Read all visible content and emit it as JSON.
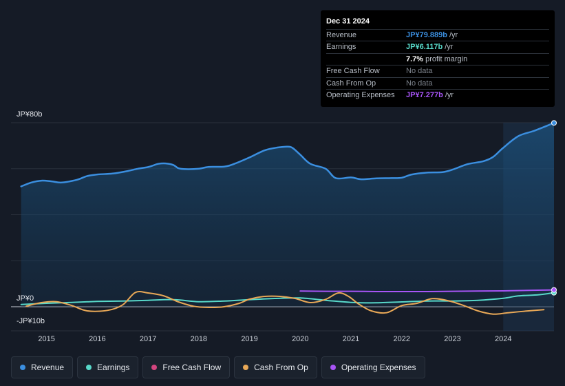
{
  "chart_data": {
    "type": "line",
    "title": "",
    "y_axis": {
      "top_label": "JP¥80b",
      "zero_label": "JP¥0",
      "bottom_label": "-JP¥10b",
      "ylim": [
        -10,
        80
      ]
    },
    "x_ticks": [
      "2015",
      "2016",
      "2017",
      "2018",
      "2019",
      "2020",
      "2021",
      "2022",
      "2023",
      "2024"
    ],
    "x_range": [
      2014.3,
      2025.0
    ],
    "forecast_start": 2024.0,
    "series": [
      {
        "name": "Revenue",
        "color": "#3b8fe0",
        "fill": true,
        "points": [
          [
            2014.5,
            52.3
          ],
          [
            2014.7,
            54.0
          ],
          [
            2014.9,
            54.8
          ],
          [
            2015.1,
            54.5
          ],
          [
            2015.3,
            54.0
          ],
          [
            2015.6,
            55.2
          ],
          [
            2015.8,
            56.8
          ],
          [
            2016.0,
            57.5
          ],
          [
            2016.3,
            57.9
          ],
          [
            2016.6,
            59.0
          ],
          [
            2016.8,
            60.0
          ],
          [
            2017.0,
            60.7
          ],
          [
            2017.1,
            61.4
          ],
          [
            2017.2,
            62.1
          ],
          [
            2017.35,
            62.3
          ],
          [
            2017.5,
            61.6
          ],
          [
            2017.6,
            60.2
          ],
          [
            2017.75,
            59.8
          ],
          [
            2018.0,
            60.0
          ],
          [
            2018.2,
            60.8
          ],
          [
            2018.5,
            60.9
          ],
          [
            2018.7,
            62.1
          ],
          [
            2019.0,
            64.9
          ],
          [
            2019.3,
            68.0
          ],
          [
            2019.55,
            69.2
          ],
          [
            2019.75,
            69.6
          ],
          [
            2019.85,
            69.0
          ],
          [
            2020.0,
            66.1
          ],
          [
            2020.2,
            62.1
          ],
          [
            2020.5,
            60.0
          ],
          [
            2020.7,
            55.9
          ],
          [
            2021.0,
            56.2
          ],
          [
            2021.2,
            55.4
          ],
          [
            2021.5,
            55.8
          ],
          [
            2021.8,
            55.9
          ],
          [
            2022.0,
            56.1
          ],
          [
            2022.2,
            57.5
          ],
          [
            2022.5,
            58.3
          ],
          [
            2022.8,
            58.5
          ],
          [
            2023.0,
            59.6
          ],
          [
            2023.3,
            62.0
          ],
          [
            2023.6,
            63.2
          ],
          [
            2023.8,
            65.1
          ],
          [
            2024.0,
            69.1
          ],
          [
            2024.3,
            74.2
          ],
          [
            2024.6,
            76.4
          ],
          [
            2024.9,
            79.0
          ],
          [
            2025.0,
            79.9
          ]
        ]
      },
      {
        "name": "Earnings",
        "color": "#58d8c9",
        "fill": false,
        "points": [
          [
            2014.5,
            1.0
          ],
          [
            2015.0,
            1.5
          ],
          [
            2015.5,
            1.9
          ],
          [
            2016.0,
            2.3
          ],
          [
            2016.5,
            2.5
          ],
          [
            2017.0,
            2.8
          ],
          [
            2017.5,
            3.1
          ],
          [
            2018.0,
            2.2
          ],
          [
            2018.5,
            2.5
          ],
          [
            2019.0,
            3.1
          ],
          [
            2019.5,
            3.6
          ],
          [
            2020.0,
            3.8
          ],
          [
            2020.5,
            2.8
          ],
          [
            2021.0,
            1.9
          ],
          [
            2021.5,
            1.7
          ],
          [
            2022.0,
            2.1
          ],
          [
            2022.5,
            2.5
          ],
          [
            2023.0,
            2.5
          ],
          [
            2023.5,
            2.8
          ],
          [
            2024.0,
            3.7
          ],
          [
            2024.3,
            4.7
          ],
          [
            2024.7,
            5.2
          ],
          [
            2025.0,
            6.1
          ]
        ]
      },
      {
        "name": "Cash From Op",
        "color": "#e8a857",
        "fill": false,
        "points": [
          [
            2014.6,
            0.2
          ],
          [
            2014.9,
            1.8
          ],
          [
            2015.2,
            2.2
          ],
          [
            2015.5,
            0.5
          ],
          [
            2015.8,
            -1.8
          ],
          [
            2016.2,
            -1.6
          ],
          [
            2016.5,
            0.8
          ],
          [
            2016.75,
            6.2
          ],
          [
            2017.0,
            6.0
          ],
          [
            2017.3,
            4.8
          ],
          [
            2017.6,
            2.1
          ],
          [
            2017.9,
            0.2
          ],
          [
            2018.2,
            -0.3
          ],
          [
            2018.5,
            0.0
          ],
          [
            2018.8,
            1.5
          ],
          [
            2019.0,
            3.3
          ],
          [
            2019.3,
            4.5
          ],
          [
            2019.6,
            4.5
          ],
          [
            2019.9,
            3.6
          ],
          [
            2020.2,
            1.8
          ],
          [
            2020.5,
            3.2
          ],
          [
            2020.75,
            6.0
          ],
          [
            2020.95,
            4.5
          ],
          [
            2021.15,
            1.2
          ],
          [
            2021.4,
            -1.8
          ],
          [
            2021.7,
            -2.6
          ],
          [
            2022.0,
            0.5
          ],
          [
            2022.3,
            1.5
          ],
          [
            2022.6,
            3.5
          ],
          [
            2022.9,
            2.7
          ],
          [
            2023.2,
            0.7
          ],
          [
            2023.5,
            -1.8
          ],
          [
            2023.8,
            -3.2
          ],
          [
            2024.1,
            -2.6
          ],
          [
            2024.5,
            -1.8
          ],
          [
            2024.8,
            -1.3
          ]
        ]
      },
      {
        "name": "Operating Expenses",
        "color": "#a855f7",
        "fill": false,
        "points": [
          [
            2020.0,
            6.8
          ],
          [
            2020.5,
            6.7
          ],
          [
            2021.0,
            6.7
          ],
          [
            2021.5,
            6.6
          ],
          [
            2022.0,
            6.6
          ],
          [
            2022.5,
            6.6
          ],
          [
            2023.0,
            6.7
          ],
          [
            2023.5,
            6.8
          ],
          [
            2024.0,
            6.9
          ],
          [
            2024.5,
            7.1
          ],
          [
            2025.0,
            7.3
          ]
        ]
      }
    ],
    "tooltip": {
      "date": "Dec 31 2024",
      "rows": [
        {
          "label": "Revenue",
          "value": "JP¥79.889b",
          "unit": "/yr",
          "color": "#3b8fe0"
        },
        {
          "label": "Earnings",
          "value": "JP¥6.117b",
          "unit": "/yr",
          "color": "#58d8c9"
        },
        {
          "label": "",
          "value": "7.7%",
          "unit": "profit margin",
          "color": "#ffffff"
        },
        {
          "label": "Free Cash Flow",
          "value": "No data",
          "unit": "",
          "color": "#7d838c"
        },
        {
          "label": "Cash From Op",
          "value": "No data",
          "unit": "",
          "color": "#7d838c"
        },
        {
          "label": "Operating Expenses",
          "value": "JP¥7.277b",
          "unit": "/yr",
          "color": "#a855f7"
        }
      ]
    },
    "legend": [
      {
        "label": "Revenue",
        "color": "#3b8fe0"
      },
      {
        "label": "Earnings",
        "color": "#58d8c9"
      },
      {
        "label": "Free Cash Flow",
        "color": "#d3457f"
      },
      {
        "label": "Cash From Op",
        "color": "#e8a857"
      },
      {
        "label": "Operating Expenses",
        "color": "#a855f7"
      }
    ]
  }
}
